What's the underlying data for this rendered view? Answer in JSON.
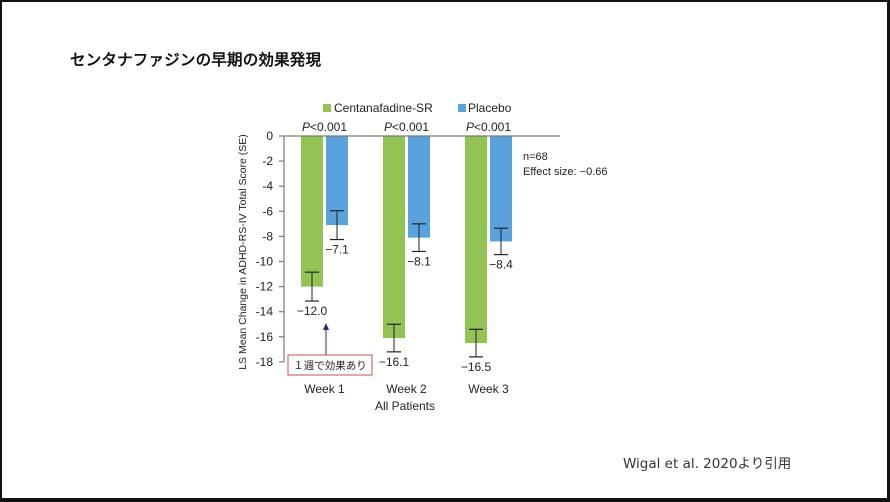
{
  "slide": {
    "title": "センタナファジンの早期の効果発現",
    "citation": "Wigal et al. 2020より引用"
  },
  "colors": {
    "centanafadine": "#92c353",
    "placebo": "#5aa2dc",
    "axis": "#7a7a7a",
    "error_bar": "#222222",
    "callout_border": "#c0504d",
    "arrow": "#1f2f6b",
    "frame": "#111111"
  },
  "chart_data": {
    "type": "bar",
    "title": "",
    "xlabel": "All Patients",
    "ylabel": "LS Mean Change in ADHD-RS-IV Total Score (SE)",
    "ylim": [
      -18,
      0
    ],
    "yticks": [
      0,
      -2,
      -4,
      -6,
      -8,
      -10,
      -12,
      -14,
      -16,
      -18
    ],
    "ytick_labels": [
      "0",
      "-2",
      "-4",
      "-6",
      "-8",
      "-10",
      "-12",
      "-14",
      "-16",
      "-18"
    ],
    "categories": [
      "Week 1",
      "Week 2",
      "Week 3"
    ],
    "series": [
      {
        "name": "Centanafadine-SR",
        "values": [
          -12.0,
          -16.1,
          -16.5
        ],
        "se": [
          1.15,
          1.1,
          1.1
        ],
        "labels": [
          "−12.0",
          "−16.1",
          "−16.5"
        ]
      },
      {
        "name": "Placebo",
        "values": [
          -7.1,
          -8.1,
          -8.4
        ],
        "se": [
          1.15,
          1.1,
          1.05
        ],
        "labels": [
          "−7.1",
          "−8.1",
          "−8.4"
        ]
      }
    ],
    "p_values": [
      "P<0.001",
      "P<0.001",
      "P<0.001"
    ],
    "legend": {
      "position": "top",
      "entries": [
        "Centanafadine-SR",
        "Placebo"
      ]
    },
    "annotations": {
      "n": "n=68",
      "effect_size": "Effect size: −0.66",
      "callout": "１週で効果あり"
    },
    "grid": false
  }
}
